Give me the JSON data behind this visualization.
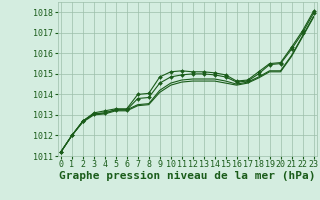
{
  "title": "Graphe pression niveau de la mer (hPa)",
  "bg_color": "#d4ede0",
  "grid_color": "#9dbfaa",
  "line_color": "#1a5c1a",
  "marker_color": "#1a5c1a",
  "xlim": [
    -0.3,
    23.3
  ],
  "ylim": [
    1011.0,
    1018.5
  ],
  "yticks": [
    1011,
    1012,
    1013,
    1014,
    1015,
    1016,
    1017,
    1018
  ],
  "xticks": [
    0,
    1,
    2,
    3,
    4,
    5,
    6,
    7,
    8,
    9,
    10,
    11,
    12,
    13,
    14,
    15,
    16,
    17,
    18,
    19,
    20,
    21,
    22,
    23
  ],
  "series": [
    {
      "y": [
        1011.2,
        1012.0,
        1012.7,
        1013.1,
        1013.2,
        1013.3,
        1013.3,
        1014.0,
        1014.05,
        1014.85,
        1015.1,
        1015.15,
        1015.1,
        1015.1,
        1015.05,
        1014.95,
        1014.65,
        1014.7,
        1015.1,
        1015.5,
        1015.55,
        1016.3,
        1017.1,
        1018.05
      ],
      "marker": true
    },
    {
      "y": [
        1011.2,
        1012.0,
        1012.7,
        1013.05,
        1013.1,
        1013.25,
        1013.25,
        1013.8,
        1013.85,
        1014.55,
        1014.85,
        1014.95,
        1015.0,
        1015.0,
        1014.95,
        1014.85,
        1014.6,
        1014.65,
        1015.0,
        1015.45,
        1015.5,
        1016.2,
        1017.0,
        1017.95
      ],
      "marker": true
    },
    {
      "y": [
        1011.2,
        1012.0,
        1012.7,
        1013.05,
        1013.1,
        1013.25,
        1013.25,
        1013.5,
        1013.55,
        1014.2,
        1014.55,
        1014.7,
        1014.75,
        1014.75,
        1014.75,
        1014.65,
        1014.5,
        1014.6,
        1014.85,
        1015.15,
        1015.15,
        1015.9,
        1016.85,
        1017.8
      ],
      "marker": false
    },
    {
      "y": [
        1011.2,
        1012.0,
        1012.65,
        1013.0,
        1013.05,
        1013.2,
        1013.2,
        1013.45,
        1013.5,
        1014.1,
        1014.45,
        1014.6,
        1014.65,
        1014.65,
        1014.65,
        1014.55,
        1014.45,
        1014.55,
        1014.8,
        1015.1,
        1015.1,
        1015.85,
        1016.8,
        1017.75
      ],
      "marker": false
    }
  ],
  "title_fontsize": 8,
  "tick_fontsize": 6,
  "xlabel_fontsize": 8
}
